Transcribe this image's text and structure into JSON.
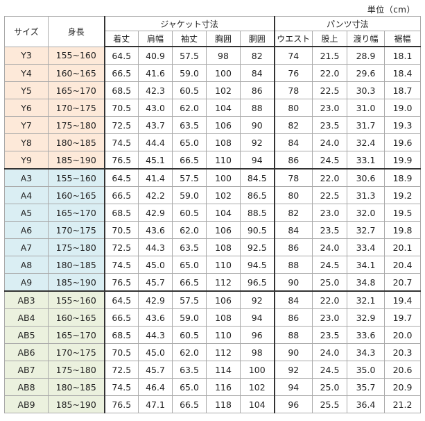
{
  "unit_label": "単位（cm）",
  "header": {
    "size": "サイズ",
    "height": "身長",
    "jacket": "ジャケット寸法",
    "pants": "パンツ寸法",
    "jacket_cols": [
      "着丈",
      "肩幅",
      "袖丈",
      "胸囲",
      "胴囲"
    ],
    "pants_cols": [
      "ウエスト",
      "股上",
      "渡り幅",
      "裾幅"
    ]
  },
  "colors": {
    "Y": "#fde9d9",
    "A": "#daeef3",
    "AB": "#ebf1de"
  },
  "rows": [
    {
      "group": "Y",
      "size": "Y3",
      "height": "155~160",
      "jacket": [
        "64.5",
        "40.9",
        "57.5",
        "98",
        "82"
      ],
      "pants": [
        "74",
        "21.5",
        "28.9",
        "18.1"
      ]
    },
    {
      "group": "Y",
      "size": "Y4",
      "height": "160~165",
      "jacket": [
        "66.5",
        "41.6",
        "59.0",
        "100",
        "84"
      ],
      "pants": [
        "76",
        "22.0",
        "29.6",
        "18.4"
      ]
    },
    {
      "group": "Y",
      "size": "Y5",
      "height": "165~170",
      "jacket": [
        "68.5",
        "42.3",
        "60.5",
        "102",
        "86"
      ],
      "pants": [
        "78",
        "22.5",
        "30.3",
        "18.7"
      ]
    },
    {
      "group": "Y",
      "size": "Y6",
      "height": "170~175",
      "jacket": [
        "70.5",
        "43.0",
        "62.0",
        "104",
        "88"
      ],
      "pants": [
        "80",
        "23.0",
        "31.0",
        "19.0"
      ]
    },
    {
      "group": "Y",
      "size": "Y7",
      "height": "175~180",
      "jacket": [
        "72.5",
        "43.7",
        "63.5",
        "106",
        "90"
      ],
      "pants": [
        "82",
        "23.5",
        "31.7",
        "19.3"
      ]
    },
    {
      "group": "Y",
      "size": "Y8",
      "height": "180~185",
      "jacket": [
        "74.5",
        "44.4",
        "65.0",
        "108",
        "92"
      ],
      "pants": [
        "84",
        "24.0",
        "32.4",
        "19.6"
      ]
    },
    {
      "group": "Y",
      "size": "Y9",
      "height": "185~190",
      "jacket": [
        "76.5",
        "45.1",
        "66.5",
        "110",
        "94"
      ],
      "pants": [
        "86",
        "24.5",
        "33.1",
        "19.9"
      ]
    },
    {
      "group": "A",
      "size": "A3",
      "height": "155~160",
      "jacket": [
        "64.5",
        "41.4",
        "57.5",
        "100",
        "84.5"
      ],
      "pants": [
        "78",
        "22.0",
        "30.6",
        "18.9"
      ]
    },
    {
      "group": "A",
      "size": "A4",
      "height": "160~165",
      "jacket": [
        "66.5",
        "42.2",
        "59.0",
        "102",
        "86.5"
      ],
      "pants": [
        "80",
        "22.5",
        "31.3",
        "19.2"
      ]
    },
    {
      "group": "A",
      "size": "A5",
      "height": "165~170",
      "jacket": [
        "68.5",
        "42.9",
        "60.5",
        "104",
        "88.5"
      ],
      "pants": [
        "82",
        "23.0",
        "32.0",
        "19.5"
      ]
    },
    {
      "group": "A",
      "size": "A6",
      "height": "170~175",
      "jacket": [
        "70.5",
        "43.6",
        "62.0",
        "106",
        "90.5"
      ],
      "pants": [
        "84",
        "23.5",
        "32.7",
        "19.8"
      ]
    },
    {
      "group": "A",
      "size": "A7",
      "height": "175~180",
      "jacket": [
        "72.5",
        "44.3",
        "63.5",
        "108",
        "92.5"
      ],
      "pants": [
        "86",
        "24.0",
        "33.4",
        "20.1"
      ]
    },
    {
      "group": "A",
      "size": "A8",
      "height": "180~185",
      "jacket": [
        "74.5",
        "45.0",
        "65.0",
        "110",
        "94.5"
      ],
      "pants": [
        "88",
        "24.5",
        "34.1",
        "20.4"
      ]
    },
    {
      "group": "A",
      "size": "A9",
      "height": "185~190",
      "jacket": [
        "76.5",
        "45.7",
        "66.5",
        "112",
        "96.5"
      ],
      "pants": [
        "90",
        "25.0",
        "34.8",
        "20.7"
      ]
    },
    {
      "group": "AB",
      "size": "AB3",
      "height": "155~160",
      "jacket": [
        "64.5",
        "42.9",
        "57.5",
        "106",
        "92"
      ],
      "pants": [
        "84",
        "22.0",
        "32.1",
        "19.4"
      ]
    },
    {
      "group": "AB",
      "size": "AB4",
      "height": "160~165",
      "jacket": [
        "66.5",
        "43.6",
        "59.0",
        "108",
        "94"
      ],
      "pants": [
        "86",
        "23.0",
        "32.9",
        "19.7"
      ]
    },
    {
      "group": "AB",
      "size": "AB5",
      "height": "165~170",
      "jacket": [
        "68.5",
        "44.3",
        "60.5",
        "110",
        "96"
      ],
      "pants": [
        "88",
        "23.5",
        "33.6",
        "20.0"
      ]
    },
    {
      "group": "AB",
      "size": "AB6",
      "height": "170~175",
      "jacket": [
        "70.5",
        "45.0",
        "62.0",
        "112",
        "98"
      ],
      "pants": [
        "90",
        "24.0",
        "34.3",
        "20.3"
      ]
    },
    {
      "group": "AB",
      "size": "AB7",
      "height": "175~180",
      "jacket": [
        "72.5",
        "45.7",
        "63.5",
        "114",
        "100"
      ],
      "pants": [
        "92",
        "24.5",
        "35.0",
        "20.6"
      ]
    },
    {
      "group": "AB",
      "size": "AB8",
      "height": "180~185",
      "jacket": [
        "74.5",
        "46.4",
        "65.0",
        "116",
        "102"
      ],
      "pants": [
        "94",
        "25.0",
        "35.7",
        "20.9"
      ]
    },
    {
      "group": "AB",
      "size": "AB9",
      "height": "185~190",
      "jacket": [
        "76.5",
        "47.1",
        "66.5",
        "118",
        "104"
      ],
      "pants": [
        "96",
        "25.5",
        "36.4",
        "21.2"
      ]
    }
  ]
}
